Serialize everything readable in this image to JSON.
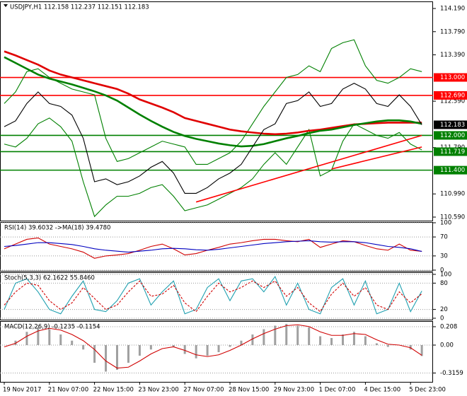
{
  "chart_data": [
    {
      "type": "line",
      "title": "USDJPY,H1  112.158 112.237 112.151 112.183",
      "categories": [
        "19 Nov 2017",
        null,
        null,
        null,
        "21 Nov 07:00",
        null,
        null,
        null,
        "22 Nov 15:00",
        null,
        null,
        null,
        "23 Nov 23:00",
        null,
        null,
        null,
        "27 Nov 07:00",
        null,
        null,
        null,
        "28 Nov 15:00",
        null,
        null,
        null,
        "29 Nov 23:00",
        null,
        null,
        null,
        "1 Dec 07:00",
        null,
        null,
        null,
        "4 Dec 15:00",
        null,
        null,
        null,
        "5 Dec 23:00",
        null
      ],
      "ylim": [
        110.529,
        114.312
      ],
      "yticks": [
        {
          "value": 114.19,
          "label": "114.190"
        },
        {
          "value": 113.79,
          "label": "113.790"
        },
        {
          "value": 113.39,
          "label": "113.390"
        },
        {
          "value": 112.59,
          "label": "112.590"
        },
        {
          "value": 111.79,
          "label": "111.790"
        },
        {
          "value": 110.99,
          "label": "110.990"
        },
        {
          "value": 110.59,
          "label": "110.590"
        }
      ],
      "series": [
        {
          "color": "#008000",
          "style": "thin",
          "values": [
            112.55,
            112.75,
            113.1,
            113.15,
            113.0,
            112.9,
            112.8,
            112.75,
            112.7,
            111.95,
            111.55,
            111.6,
            111.7,
            111.8,
            111.9,
            111.85,
            111.8,
            111.5,
            111.5,
            111.6,
            111.7,
            111.9,
            112.2,
            112.5,
            112.75,
            113.0,
            113.05,
            113.2,
            113.1,
            113.5,
            113.6,
            113.65,
            113.2,
            112.95,
            112.9,
            113.0,
            113.15,
            113.1
          ]
        },
        {
          "color": "#008000",
          "style": "thin",
          "values": [
            111.85,
            111.8,
            111.95,
            112.2,
            112.3,
            112.15,
            111.9,
            111.2,
            110.6,
            110.8,
            110.95,
            110.95,
            111.0,
            111.1,
            111.15,
            110.95,
            110.7,
            110.75,
            110.8,
            110.9,
            111.0,
            111.1,
            111.25,
            111.5,
            111.7,
            111.5,
            111.8,
            112.1,
            111.3,
            111.4,
            111.9,
            112.2,
            112.1,
            112.0,
            111.95,
            112.05,
            111.85,
            111.75
          ]
        },
        {
          "color": "#e00000",
          "style": "thick",
          "values": [
            113.45,
            113.38,
            113.3,
            113.22,
            113.12,
            113.05,
            113.0,
            112.95,
            112.9,
            112.85,
            112.8,
            112.72,
            112.62,
            112.55,
            112.48,
            112.4,
            112.3,
            112.25,
            112.2,
            112.15,
            112.1,
            112.07,
            112.05,
            112.03,
            112.02,
            112.03,
            112.05,
            112.08,
            112.1,
            112.13,
            112.16,
            112.19,
            112.2,
            112.21,
            112.22,
            112.22,
            112.22,
            112.22
          ]
        },
        {
          "color": "#008000",
          "style": "thick",
          "values": [
            113.35,
            113.25,
            113.15,
            113.05,
            112.98,
            112.93,
            112.88,
            112.82,
            112.76,
            112.69,
            112.6,
            112.48,
            112.36,
            112.25,
            112.15,
            112.06,
            111.99,
            111.94,
            111.9,
            111.86,
            111.83,
            111.81,
            111.82,
            111.85,
            111.9,
            111.95,
            111.99,
            112.04,
            112.08,
            112.1,
            112.14,
            112.18,
            112.21,
            112.24,
            112.26,
            112.26,
            112.24,
            112.2
          ]
        },
        {
          "color": "#000000",
          "style": "price",
          "values": [
            112.15,
            112.25,
            112.55,
            112.75,
            112.55,
            112.5,
            112.35,
            111.95,
            111.2,
            111.25,
            111.15,
            111.2,
            111.3,
            111.45,
            111.55,
            111.35,
            111.0,
            111.0,
            111.1,
            111.25,
            111.35,
            111.5,
            111.8,
            112.1,
            112.2,
            112.55,
            112.6,
            112.75,
            112.5,
            112.55,
            112.8,
            112.9,
            112.8,
            112.55,
            112.5,
            112.7,
            112.5,
            112.183
          ]
        }
      ],
      "levels": [
        {
          "value": 113.0,
          "label": "113.000",
          "color": "#ff0000"
        },
        {
          "value": 112.69,
          "label": "112.690",
          "color": "#ff0000"
        },
        {
          "value": 112.0,
          "label": "112.000",
          "color": "#008000"
        },
        {
          "value": 111.719,
          "label": "111.719",
          "color": "#008000"
        },
        {
          "value": 111.4,
          "label": "111.400",
          "color": "#008000"
        }
      ],
      "trendlines": [
        {
          "x": [
            17,
            37
          ],
          "values": [
            110.85,
            112.0
          ],
          "color": "#ff0000"
        },
        {
          "x": [
            29,
            37
          ],
          "values": [
            111.42,
            111.8
          ],
          "color": "#ff0000"
        }
      ],
      "price_label": {
        "value": 112.183,
        "label": "112.183"
      }
    },
    {
      "type": "line",
      "title": "RSI(14) 39.6032  ->MA(18) 39.4780",
      "ylim": [
        -1.5,
        101.5
      ],
      "yticks": [
        100,
        70,
        30,
        0
      ],
      "series": [
        {
          "color": "#d00000",
          "style": "thin",
          "values": [
            45,
            55,
            65,
            68,
            55,
            50,
            45,
            38,
            25,
            30,
            32,
            35,
            42,
            50,
            55,
            45,
            32,
            35,
            42,
            48,
            55,
            58,
            62,
            65,
            65,
            62,
            60,
            65,
            48,
            55,
            62,
            60,
            52,
            45,
            42,
            55,
            42,
            39.6032
          ]
        },
        {
          "color": "#0000c0",
          "style": "thin",
          "values": [
            50,
            52,
            55,
            58,
            58,
            56,
            54,
            50,
            45,
            42,
            40,
            38,
            40,
            42,
            45,
            46,
            45,
            43,
            42,
            44,
            47,
            50,
            53,
            56,
            58,
            60,
            61,
            62,
            60,
            59,
            60,
            60,
            58,
            54,
            50,
            48,
            45,
            39.478
          ]
        }
      ]
    },
    {
      "type": "line",
      "title": "Stoch(5,3,3) 62.1622 55.8460",
      "ylim": [
        -3.2,
        104.8
      ],
      "yticks": [
        100,
        80,
        20,
        0
      ],
      "series": [
        {
          "color": "#20a0b0",
          "style": "thin",
          "values": [
            20,
            80,
            90,
            60,
            20,
            10,
            50,
            85,
            20,
            15,
            40,
            80,
            90,
            30,
            60,
            85,
            10,
            20,
            70,
            90,
            40,
            85,
            90,
            60,
            95,
            30,
            80,
            20,
            10,
            70,
            90,
            30,
            85,
            10,
            20,
            80,
            15,
            62.1622
          ]
        },
        {
          "color": "#d00000",
          "style": "dashed",
          "values": [
            30,
            60,
            80,
            75,
            40,
            20,
            35,
            70,
            45,
            20,
            30,
            60,
            85,
            50,
            55,
            75,
            35,
            15,
            50,
            80,
            60,
            70,
            85,
            70,
            85,
            50,
            70,
            35,
            15,
            55,
            80,
            50,
            70,
            30,
            20,
            60,
            35,
            55.846
          ]
        }
      ]
    },
    {
      "type": "bar",
      "title": "MACD(12,26,9) -0.1235 -0.1154",
      "ylim": [
        -0.416,
        0.272
      ],
      "yticks": [
        0.208,
        {
          "value": 0,
          "label": "0.00"
        },
        -0.3159
      ],
      "series": [
        {
          "color": "#a0a0a0",
          "style": "histogram",
          "values": [
            0.0,
            0.05,
            0.15,
            0.2,
            0.18,
            0.12,
            0.05,
            -0.05,
            -0.2,
            -0.3,
            -0.28,
            -0.2,
            -0.12,
            -0.05,
            0.0,
            -0.02,
            -0.1,
            -0.15,
            -0.12,
            -0.08,
            -0.02,
            0.05,
            0.12,
            0.18,
            0.22,
            0.24,
            0.22,
            0.2,
            0.1,
            0.08,
            0.12,
            0.15,
            0.1,
            0.02,
            -0.02,
            0.0,
            -0.05,
            -0.1235
          ]
        },
        {
          "color": "#d00000",
          "style": "thin",
          "values": [
            -0.02,
            0.02,
            0.1,
            0.16,
            0.19,
            0.17,
            0.12,
            0.05,
            -0.05,
            -0.18,
            -0.26,
            -0.25,
            -0.18,
            -0.1,
            -0.04,
            -0.02,
            -0.06,
            -0.11,
            -0.13,
            -0.11,
            -0.06,
            0.0,
            0.07,
            0.13,
            0.18,
            0.22,
            0.23,
            0.21,
            0.15,
            0.11,
            0.11,
            0.13,
            0.12,
            0.06,
            0.01,
            0.0,
            -0.03,
            -0.1154
          ]
        }
      ]
    }
  ]
}
